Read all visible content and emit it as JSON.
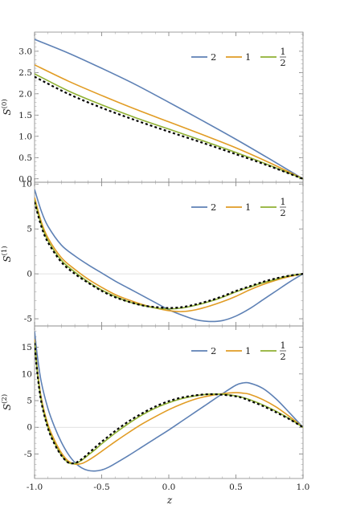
{
  "chart_data": [
    {
      "type": "line",
      "ylabel": "S(0)",
      "ylabel_base": "S",
      "ylabel_sup": "(0)",
      "xlim": [
        -1.0,
        1.0
      ],
      "ylim": [
        -0.08,
        3.45
      ],
      "yticks": [
        0.0,
        0.5,
        1.0,
        1.5,
        2.0,
        2.5,
        3.0
      ],
      "ytick_labels": [
        "0.0",
        "0.5",
        "1.0",
        "1.5",
        "2.0",
        "2.5",
        "3.0"
      ],
      "zero_line": false,
      "legend_placement": "top-right",
      "x": [
        -1.0,
        -0.75,
        -0.5,
        -0.25,
        0.0,
        0.25,
        0.5,
        0.75,
        1.0
      ],
      "series": [
        {
          "name": "2",
          "color": "#5E81B5",
          "dash": false,
          "values": [
            3.28,
            2.96,
            2.6,
            2.22,
            1.8,
            1.37,
            0.93,
            0.47,
            0.0
          ]
        },
        {
          "name": "1",
          "color": "#E19C24",
          "dash": false,
          "values": [
            2.68,
            2.3,
            1.96,
            1.64,
            1.34,
            1.04,
            0.73,
            0.38,
            0.0
          ]
        },
        {
          "name": "1/2",
          "color": "#8FB032",
          "dash": false,
          "values": [
            2.47,
            2.07,
            1.74,
            1.44,
            1.17,
            0.9,
            0.62,
            0.32,
            0.0
          ]
        },
        {
          "name": "",
          "color": "#000000",
          "dash": true,
          "values": [
            2.4,
            2.0,
            1.67,
            1.38,
            1.11,
            0.85,
            0.58,
            0.3,
            0.0
          ]
        }
      ]
    },
    {
      "type": "line",
      "ylabel": "S(1)",
      "ylabel_base": "S",
      "ylabel_sup": "(1)",
      "xlim": [
        -1.0,
        1.0
      ],
      "ylim": [
        -5.8,
        10.2
      ],
      "yticks": [
        -5,
        0,
        5,
        10
      ],
      "ytick_labels": [
        "-5",
        "0",
        "5",
        "10"
      ],
      "zero_line": true,
      "legend_placement": "top-right",
      "x": [
        -1.0,
        -0.95,
        -0.9,
        -0.8,
        -0.7,
        -0.6,
        -0.5,
        -0.4,
        -0.3,
        -0.2,
        -0.1,
        0.0,
        0.1,
        0.2,
        0.3,
        0.4,
        0.5,
        0.6,
        0.7,
        0.8,
        0.9,
        1.0
      ],
      "series": [
        {
          "name": "2",
          "color": "#5E81B5",
          "dash": false,
          "values": [
            9.4,
            7.0,
            5.3,
            3.2,
            2.0,
            1.0,
            0.1,
            -0.8,
            -1.6,
            -2.4,
            -3.2,
            -4.0,
            -4.6,
            -5.1,
            -5.3,
            -5.2,
            -4.7,
            -3.9,
            -2.9,
            -1.9,
            -0.9,
            0.0
          ]
        },
        {
          "name": "1",
          "color": "#E19C24",
          "dash": false,
          "values": [
            8.5,
            5.8,
            4.0,
            1.8,
            0.5,
            -0.6,
            -1.5,
            -2.3,
            -2.9,
            -3.4,
            -3.8,
            -4.1,
            -4.2,
            -4.0,
            -3.6,
            -3.1,
            -2.5,
            -1.8,
            -1.2,
            -0.7,
            -0.3,
            0.0
          ]
        },
        {
          "name": "1/2",
          "color": "#8FB032",
          "dash": false,
          "values": [
            8.2,
            5.5,
            3.7,
            1.5,
            0.2,
            -0.9,
            -1.8,
            -2.5,
            -3.1,
            -3.5,
            -3.8,
            -3.9,
            -3.8,
            -3.5,
            -3.1,
            -2.6,
            -2.0,
            -1.5,
            -1.0,
            -0.6,
            -0.2,
            0.0
          ]
        },
        {
          "name": "",
          "color": "#000000",
          "dash": true,
          "values": [
            8.0,
            5.3,
            3.5,
            1.3,
            0.0,
            -1.0,
            -1.9,
            -2.6,
            -3.1,
            -3.5,
            -3.7,
            -3.8,
            -3.7,
            -3.4,
            -3.0,
            -2.5,
            -1.9,
            -1.4,
            -0.9,
            -0.5,
            -0.2,
            0.0
          ]
        }
      ]
    },
    {
      "type": "line",
      "ylabel": "S(2)",
      "ylabel_base": "S",
      "ylabel_sup": "(2)",
      "xlabel": "z",
      "xlim": [
        -1.0,
        1.0
      ],
      "ylim": [
        -9.6,
        19.0
      ],
      "yticks": [
        -5,
        0,
        5,
        10,
        15
      ],
      "ytick_labels": [
        "-5",
        "0",
        "5",
        "10",
        "15"
      ],
      "xticks": [
        -1.0,
        -0.5,
        0.0,
        0.5,
        1.0
      ],
      "xtick_labels": [
        "-1.0",
        "-0.5",
        "0.0",
        "0.5",
        "1.0"
      ],
      "zero_line": true,
      "legend_placement": "top-right",
      "x": [
        -1.0,
        -0.98,
        -0.95,
        -0.9,
        -0.85,
        -0.8,
        -0.75,
        -0.7,
        -0.65,
        -0.6,
        -0.55,
        -0.5,
        -0.45,
        -0.4,
        -0.3,
        -0.2,
        -0.1,
        0.0,
        0.1,
        0.2,
        0.3,
        0.4,
        0.5,
        0.55,
        0.6,
        0.7,
        0.8,
        0.9,
        1.0
      ],
      "series": [
        {
          "name": "2",
          "color": "#5E81B5",
          "dash": false,
          "values": [
            18.0,
            13.5,
            8.5,
            3.5,
            0.0,
            -2.8,
            -5.0,
            -6.6,
            -7.6,
            -8.1,
            -8.2,
            -8.0,
            -7.5,
            -6.8,
            -5.3,
            -3.7,
            -2.1,
            -0.5,
            1.2,
            2.9,
            4.6,
            6.3,
            7.9,
            8.3,
            8.3,
            7.3,
            5.3,
            2.7,
            0.0
          ]
        },
        {
          "name": "1",
          "color": "#E19C24",
          "dash": false,
          "values": [
            16.5,
            11.0,
            5.5,
            0.5,
            -2.5,
            -4.8,
            -6.3,
            -6.9,
            -6.8,
            -6.2,
            -5.4,
            -4.5,
            -3.6,
            -2.7,
            -1.0,
            0.6,
            2.0,
            3.3,
            4.4,
            5.3,
            5.9,
            6.3,
            6.5,
            6.4,
            6.2,
            5.2,
            3.8,
            2.0,
            0.0
          ]
        },
        {
          "name": "1/2",
          "color": "#8FB032",
          "dash": false,
          "values": [
            16.0,
            10.5,
            5.0,
            0.0,
            -3.0,
            -5.2,
            -6.6,
            -6.8,
            -6.2,
            -5.2,
            -4.2,
            -3.1,
            -2.1,
            -1.1,
            0.7,
            2.3,
            3.6,
            4.6,
            5.4,
            5.9,
            6.2,
            6.2,
            5.9,
            5.6,
            5.2,
            4.2,
            3.0,
            1.6,
            0.0
          ]
        },
        {
          "name": "",
          "color": "#000000",
          "dash": true,
          "values": [
            15.8,
            10.3,
            4.8,
            -0.2,
            -3.2,
            -5.3,
            -6.6,
            -6.7,
            -6.0,
            -4.9,
            -3.8,
            -2.7,
            -1.7,
            -0.7,
            1.1,
            2.6,
            3.9,
            4.9,
            5.6,
            6.0,
            6.2,
            6.1,
            5.8,
            5.5,
            5.0,
            4.0,
            2.8,
            1.5,
            0.0
          ]
        }
      ]
    }
  ]
}
